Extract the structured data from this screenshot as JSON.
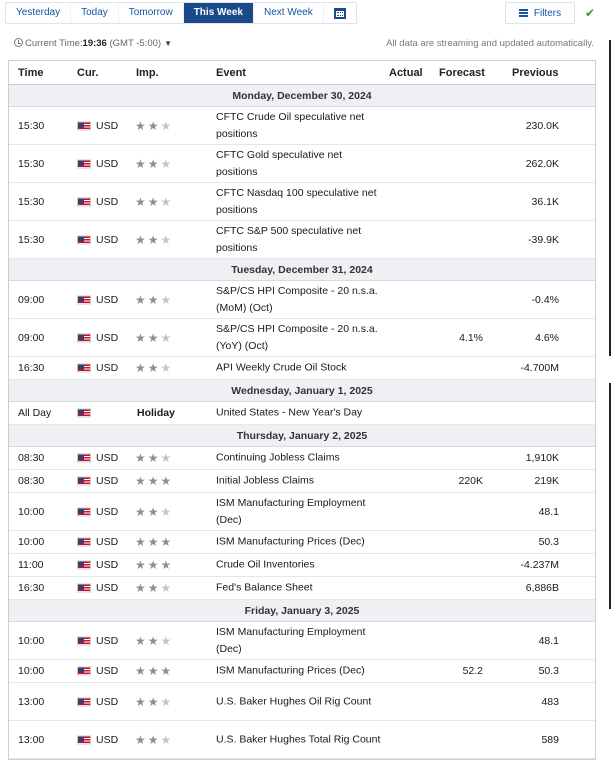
{
  "tabs": [
    {
      "label": "Yesterday",
      "active": false
    },
    {
      "label": "Today",
      "active": false
    },
    {
      "label": "Tomorrow",
      "active": false
    },
    {
      "label": "This Week",
      "active": true
    },
    {
      "label": "Next Week",
      "active": false
    }
  ],
  "filters_label": "Filters",
  "calendar_icon": "calendar-icon",
  "info": {
    "current_time_label": "Current Time:",
    "current_time": "19:36",
    "timezone": "(GMT -5:00)",
    "stream_note": "All data are streaming and updated automatically."
  },
  "columns": {
    "time": "Time",
    "currency": "Cur.",
    "importance": "Imp.",
    "event": "Event",
    "actual": "Actual",
    "forecast": "Forecast",
    "previous": "Previous"
  },
  "colors": {
    "active_tab": "#1b4a8b",
    "link": "#1256a0",
    "check": "#2a9d3c",
    "day_header_bg": "#eef0f3"
  },
  "days": [
    {
      "label": "Monday, December 30, 2024",
      "events": [
        {
          "time": "15:30",
          "currency": "USD",
          "importance": 2,
          "event": "CFTC Crude Oil speculative net positions",
          "actual": "",
          "forecast": "",
          "previous": "230.0K",
          "tall": true
        },
        {
          "time": "15:30",
          "currency": "USD",
          "importance": 2,
          "event": "CFTC Gold speculative net positions",
          "actual": "",
          "forecast": "",
          "previous": "262.0K",
          "tall": true
        },
        {
          "time": "15:30",
          "currency": "USD",
          "importance": 2,
          "event": "CFTC Nasdaq 100 speculative net positions",
          "actual": "",
          "forecast": "",
          "previous": "36.1K",
          "tall": true
        },
        {
          "time": "15:30",
          "currency": "USD",
          "importance": 2,
          "event": "CFTC S&P 500 speculative net positions",
          "actual": "",
          "forecast": "",
          "previous": "-39.9K",
          "tall": true
        }
      ]
    },
    {
      "label": "Tuesday, December 31, 2024",
      "events": [
        {
          "time": "09:00",
          "currency": "USD",
          "importance": 2,
          "event": "S&P/CS HPI Composite - 20 n.s.a. (MoM) (Oct)",
          "actual": "",
          "forecast": "",
          "previous": "-0.4%",
          "tall": true
        },
        {
          "time": "09:00",
          "currency": "USD",
          "importance": 2,
          "event": "S&P/CS HPI Composite - 20 n.s.a. (YoY) (Oct)",
          "actual": "",
          "forecast": "4.1%",
          "previous": "4.6%",
          "tall": true
        },
        {
          "time": "16:30",
          "currency": "USD",
          "importance": 2,
          "event": "API Weekly Crude Oil Stock",
          "actual": "",
          "forecast": "",
          "previous": "-4.700M",
          "tall": false
        }
      ]
    },
    {
      "label": "Wednesday, January 1, 2025",
      "events": [
        {
          "time": "All Day",
          "currency": "",
          "holiday": "Holiday",
          "importance": 0,
          "event": "United States - New Year's Day",
          "actual": "",
          "forecast": "",
          "previous": "",
          "tall": false
        }
      ]
    },
    {
      "label": "Thursday, January 2, 2025",
      "events": [
        {
          "time": "08:30",
          "currency": "USD",
          "importance": 2,
          "event": "Continuing Jobless Claims",
          "actual": "",
          "forecast": "",
          "previous": "1,910K",
          "tall": false
        },
        {
          "time": "08:30",
          "currency": "USD",
          "importance": 3,
          "event": "Initial Jobless Claims",
          "actual": "",
          "forecast": "220K",
          "previous": "219K",
          "tall": false
        },
        {
          "time": "10:00",
          "currency": "USD",
          "importance": 2,
          "event": "ISM Manufacturing Employment (Dec)",
          "actual": "",
          "forecast": "",
          "previous": "48.1",
          "tall": true
        },
        {
          "time": "10:00",
          "currency": "USD",
          "importance": 3,
          "event": "ISM Manufacturing Prices (Dec)",
          "actual": "",
          "forecast": "",
          "previous": "50.3",
          "tall": false
        },
        {
          "time": "11:00",
          "currency": "USD",
          "importance": 3,
          "event": "Crude Oil Inventories",
          "actual": "",
          "forecast": "",
          "previous": "-4.237M",
          "tall": false
        },
        {
          "time": "16:30",
          "currency": "USD",
          "importance": 2,
          "event": "Fed's Balance Sheet",
          "actual": "",
          "forecast": "",
          "previous": "6,886B",
          "tall": false
        }
      ]
    },
    {
      "label": "Friday, January 3, 2025",
      "events": [
        {
          "time": "10:00",
          "currency": "USD",
          "importance": 2,
          "event": "ISM Manufacturing Employment (Dec)",
          "actual": "",
          "forecast": "",
          "previous": "48.1",
          "tall": true
        },
        {
          "time": "10:00",
          "currency": "USD",
          "importance": 3,
          "event": "ISM Manufacturing Prices (Dec)",
          "actual": "",
          "forecast": "52.2",
          "previous": "50.3",
          "tall": false
        },
        {
          "time": "13:00",
          "currency": "USD",
          "importance": 2,
          "event": "U.S. Baker Hughes Oil Rig Count",
          "actual": "",
          "forecast": "",
          "previous": "483",
          "tall": true
        },
        {
          "time": "13:00",
          "currency": "USD",
          "importance": 2,
          "event": "U.S. Baker Hughes Total Rig Count",
          "actual": "",
          "forecast": "",
          "previous": "589",
          "tall": true
        }
      ]
    }
  ]
}
